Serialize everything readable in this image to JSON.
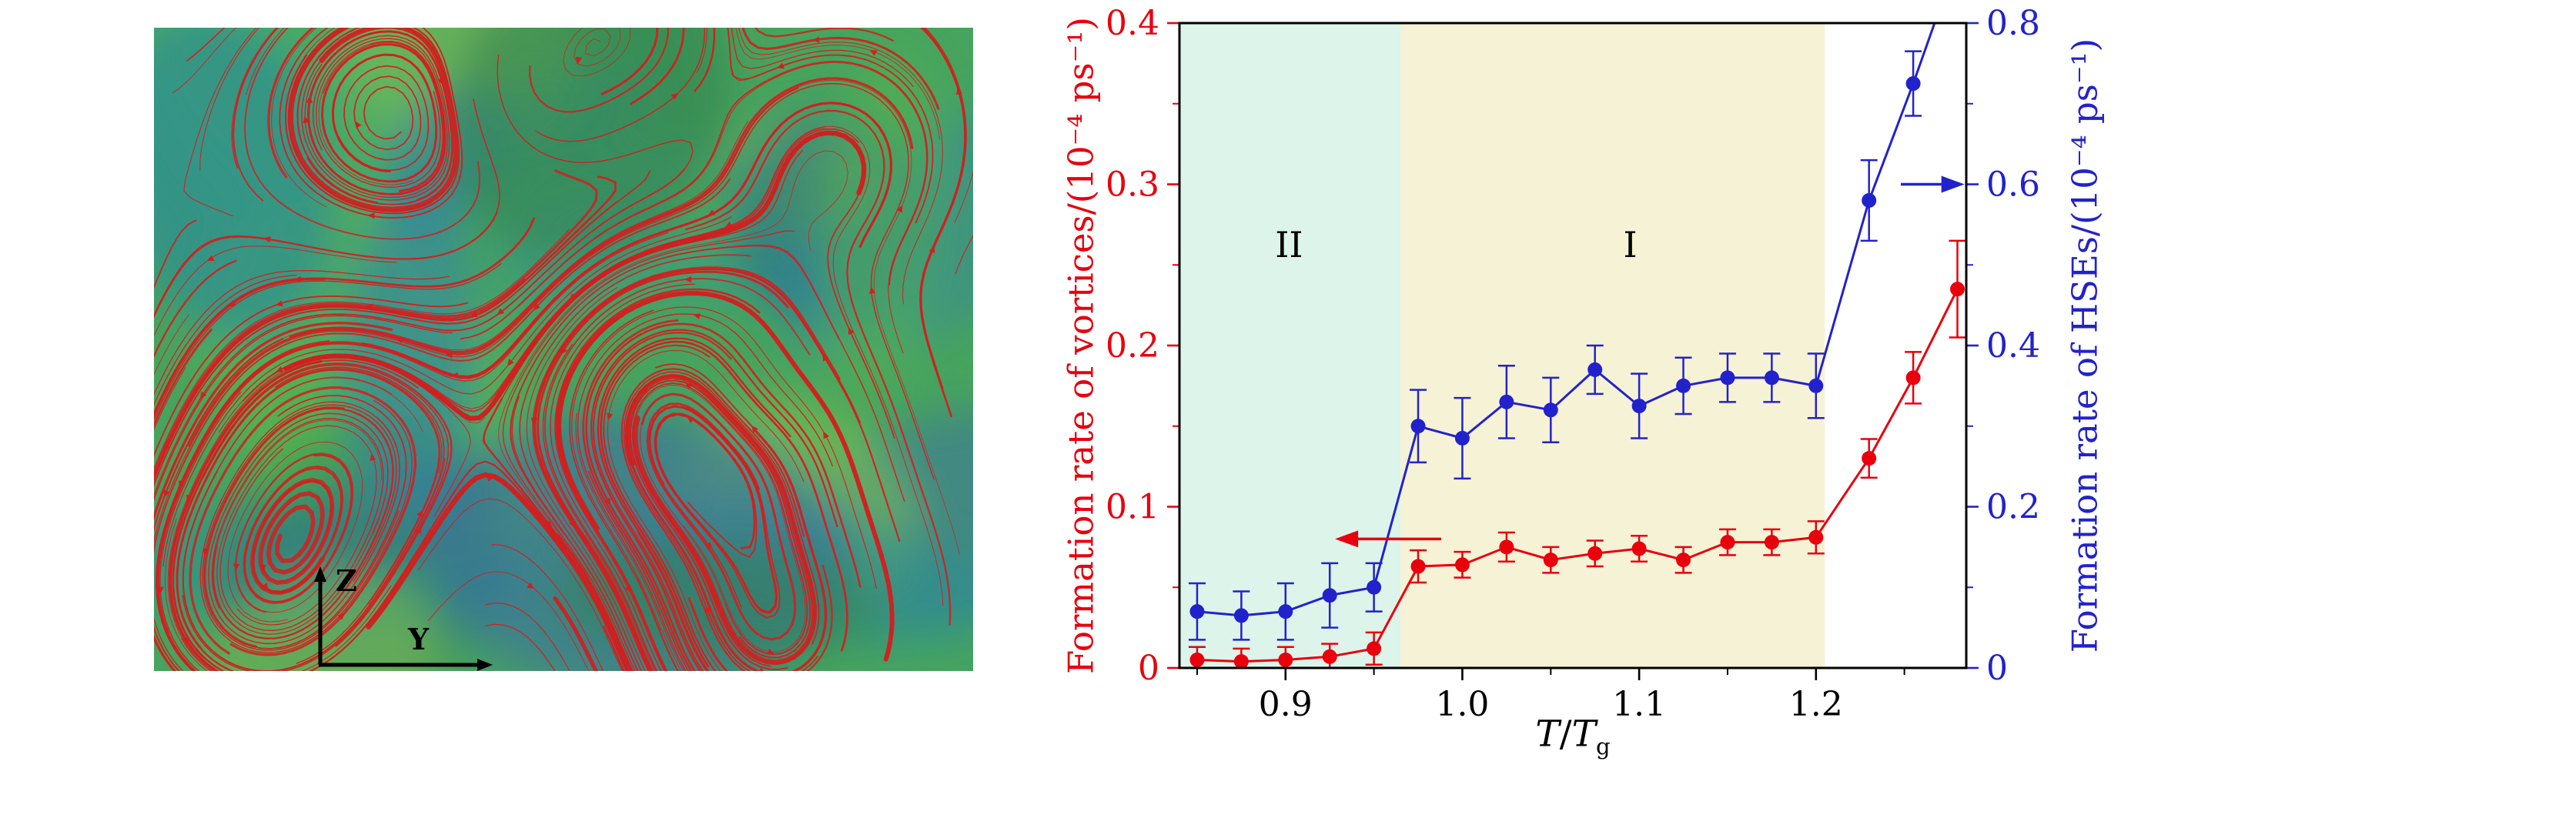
{
  "page": {
    "background": "#ffffff"
  },
  "left_panel": {
    "type": "streamline-visualization",
    "axis_labels": {
      "z": "Z",
      "y": "Y"
    },
    "palette": {
      "base": "#47a45e",
      "patches": [
        "#2d8e93",
        "#3a6fa3",
        "#2e7fae",
        "#57b24f",
        "#9fca52",
        "#31814f",
        "#3c9a8a",
        "#86c24e",
        "#256b8f",
        "#49b06a"
      ],
      "streamline": "#d21f1f"
    }
  },
  "chart_data": {
    "type": "line",
    "title": "",
    "x": [
      0.85,
      0.875,
      0.9,
      0.925,
      0.95,
      0.975,
      1.0,
      1.025,
      1.05,
      1.075,
      1.1,
      1.125,
      1.15,
      1.175,
      1.2,
      1.23,
      1.255,
      1.28
    ],
    "series": [
      {
        "name": "Formation rate of vortices",
        "axis": "left",
        "color": "#e8000d",
        "marker": "circle",
        "values": [
          0.005,
          0.004,
          0.005,
          0.007,
          0.012,
          0.063,
          0.064,
          0.075,
          0.067,
          0.071,
          0.074,
          0.067,
          0.078,
          0.078,
          0.081,
          0.13,
          0.18,
          0.235
        ],
        "yerr": [
          0.008,
          0.008,
          0.008,
          0.008,
          0.01,
          0.01,
          0.008,
          0.009,
          0.008,
          0.008,
          0.008,
          0.008,
          0.008,
          0.008,
          0.01,
          0.012,
          0.016,
          0.03
        ]
      },
      {
        "name": "Formation rate of HSEs",
        "axis": "right",
        "color": "#2222cc",
        "marker": "circle",
        "values": [
          0.07,
          0.065,
          0.07,
          0.09,
          0.1,
          0.3,
          0.285,
          0.33,
          0.32,
          0.37,
          0.325,
          0.35,
          0.36,
          0.36,
          0.35,
          0.58,
          0.725,
          0.88
        ],
        "yerr": [
          0.035,
          0.03,
          0.035,
          0.04,
          0.03,
          0.045,
          0.05,
          0.045,
          0.04,
          0.03,
          0.04,
          0.035,
          0.03,
          0.03,
          0.04,
          0.05,
          0.04,
          0.05
        ]
      }
    ],
    "xlim": [
      0.84,
      1.285
    ],
    "xticks": [
      0.9,
      1.0,
      1.1,
      1.2
    ],
    "xtick_labels": [
      "0.9",
      "1.0",
      "1.1",
      "1.2"
    ],
    "xminor": [
      0.85,
      0.95,
      1.05,
      1.15,
      1.25
    ],
    "xlabel_parts": {
      "t1": "T",
      "slash": "/",
      "t2": "T",
      "sub": "g"
    },
    "left_axis": {
      "label": "Formation rate of vortices/(10⁻⁴ ps⁻¹)",
      "lim": [
        0,
        0.4
      ],
      "ticks": [
        0,
        0.1,
        0.2,
        0.3,
        0.4
      ],
      "tick_labels": [
        "0",
        "0.1",
        "0.2",
        "0.3",
        "0.4"
      ],
      "minor": [
        0.05,
        0.15,
        0.25,
        0.35
      ],
      "color": "#e8000d"
    },
    "right_axis": {
      "label": "Formation rate of HSEs/(10⁻⁴ ps⁻¹)",
      "lim": [
        0,
        0.8
      ],
      "ticks": [
        0,
        0.2,
        0.4,
        0.6,
        0.8
      ],
      "tick_labels": [
        "0",
        "0.2",
        "0.4",
        "0.6",
        "0.8"
      ],
      "minor": [
        0.1,
        0.3,
        0.5,
        0.7
      ],
      "color": "#2222cc"
    },
    "regions": [
      {
        "label": "II",
        "from": 0.84,
        "to": 0.965,
        "color": "#dcf4ea",
        "label_x": 0.902,
        "label_y": 0.255
      },
      {
        "label": "I",
        "from": 0.965,
        "to": 1.205,
        "color": "#f6f2d5",
        "label_x": 1.095,
        "label_y": 0.255
      }
    ],
    "annotations": [
      {
        "type": "arrow",
        "axis": "left",
        "x_from": 0.988,
        "x_to": 0.928,
        "y": 0.08,
        "color": "#e8000d"
      },
      {
        "type": "arrow",
        "axis": "right",
        "x_from": 1.248,
        "x_to": 1.284,
        "y": 0.6,
        "color": "#2222cc"
      }
    ],
    "grid": false,
    "legend": "none"
  }
}
